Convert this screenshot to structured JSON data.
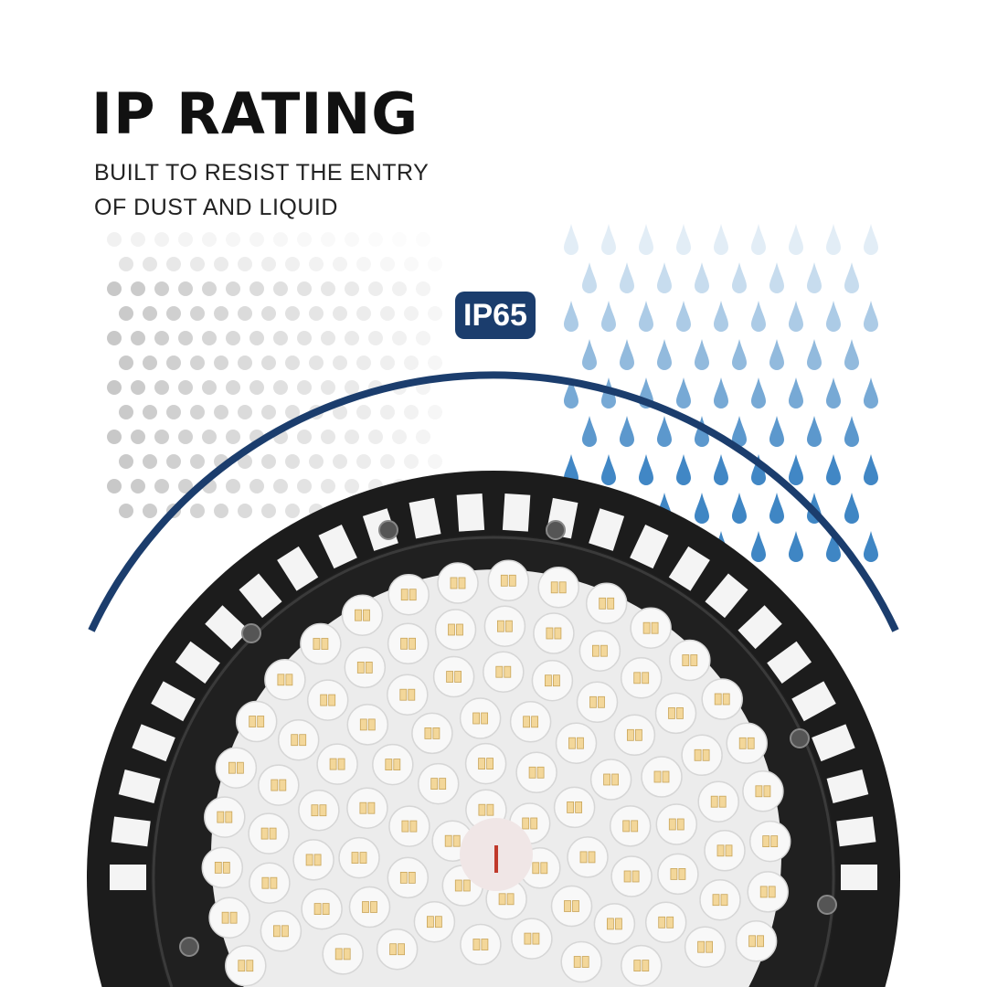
{
  "heading": {
    "title": "IP RATING",
    "subtitle_line1": "BUILT TO RESIST THE ENTRY",
    "subtitle_line2": "OF DUST AND LIQUID"
  },
  "badge": {
    "label": "IP65",
    "color": "#1b3d6d"
  },
  "colors": {
    "arc": "#1b3d6d",
    "drops": "#3f86c4",
    "dots": "#c8c8c8",
    "lamp_body": "#1c1c1c",
    "led": "#f3d79a"
  },
  "icons": [
    "dust-dots-pattern",
    "water-drops-pattern",
    "led-high-bay-lamp"
  ]
}
